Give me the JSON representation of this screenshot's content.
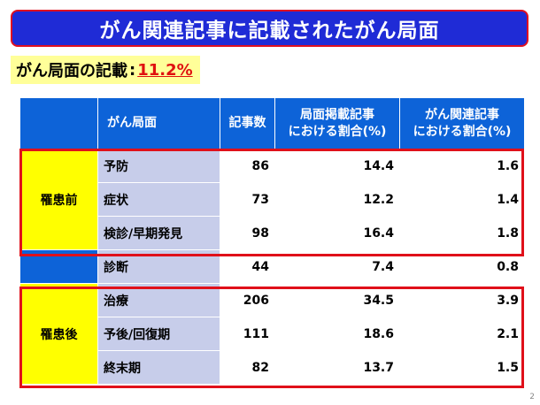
{
  "title": "がん関連記事に記載されたがん局面",
  "summary": {
    "label": "がん局面の記載",
    "colon": ":",
    "value": "11.2%"
  },
  "table": {
    "headers": [
      "がん局面",
      "記事数",
      "局面掲載記事\nにおける割合(%)",
      "がん関連記事\nにおける割合(%)"
    ],
    "groups": {
      "pre": "罹患前",
      "post": "罹患後"
    },
    "rows": [
      {
        "stage": "予防",
        "articles": "86",
        "stage_pct": "14.4",
        "cancer_pct": "1.6"
      },
      {
        "stage": "症状",
        "articles": "73",
        "stage_pct": "12.2",
        "cancer_pct": "1.4"
      },
      {
        "stage": "検診/早期発見",
        "articles": "98",
        "stage_pct": "16.4",
        "cancer_pct": "1.8"
      },
      {
        "stage": "診断",
        "articles": "44",
        "stage_pct": "7.4",
        "cancer_pct": "0.8"
      },
      {
        "stage": "治療",
        "articles": "206",
        "stage_pct": "34.5",
        "cancer_pct": "3.9"
      },
      {
        "stage": "予後/回復期",
        "articles": "111",
        "stage_pct": "18.6",
        "cancer_pct": "2.1"
      },
      {
        "stage": "終末期",
        "articles": "82",
        "stage_pct": "13.7",
        "cancer_pct": "1.5"
      }
    ]
  },
  "page_number": "2",
  "colors": {
    "title_bg": "#1f2bd6",
    "header_bg": "#0d63d8",
    "group_bg": "#ffff00",
    "stage_bg": "#c7cdea",
    "highlight": "#e0101a",
    "summary_value": "#e01010"
  }
}
